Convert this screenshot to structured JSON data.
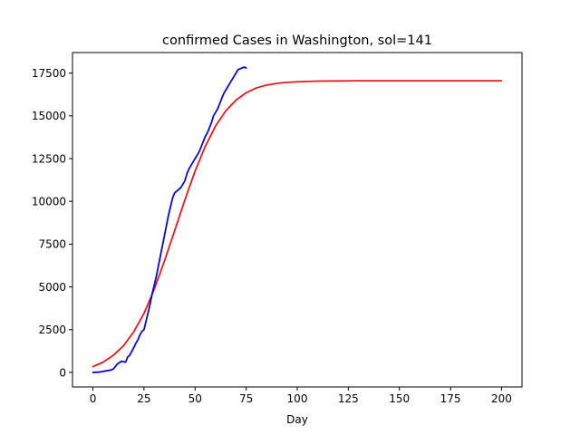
{
  "chart_data": {
    "type": "line",
    "title": "confirmed Cases in Washington, sol=141",
    "xlabel": "Day",
    "ylabel": "",
    "xlim": [
      -10,
      210
    ],
    "ylim": [
      -850,
      18700
    ],
    "xticks": [
      0,
      25,
      50,
      75,
      100,
      125,
      150,
      175,
      200
    ],
    "yticks": [
      0,
      2500,
      5000,
      7500,
      10000,
      12500,
      15000,
      17500
    ],
    "grid": false,
    "colors": {
      "fitted": "#e31a1c",
      "observed": "#0a0ac4"
    },
    "series": [
      {
        "key": "fitted",
        "x": [
          0,
          5,
          10,
          15,
          20,
          25,
          30,
          35,
          40,
          45,
          50,
          55,
          60,
          65,
          70,
          75,
          80,
          85,
          90,
          95,
          100,
          110,
          120,
          130,
          140,
          150,
          160,
          170,
          180,
          190,
          200
        ],
        "values": [
          340,
          600,
          1000,
          1560,
          2380,
          3450,
          4860,
          6510,
          8290,
          10080,
          11770,
          13220,
          14400,
          15290,
          15920,
          16350,
          16630,
          16800,
          16900,
          16960,
          16990,
          17030,
          17040,
          17050,
          17050,
          17050,
          17050,
          17050,
          17050,
          17050,
          17050
        ]
      },
      {
        "key": "observed",
        "x": [
          0,
          3,
          5,
          7,
          9,
          10,
          12,
          14,
          16,
          17,
          18,
          20,
          21,
          22,
          23,
          24,
          25,
          26,
          27,
          28,
          29,
          30,
          31,
          32,
          33,
          34,
          35,
          36,
          37,
          38,
          39,
          40,
          41,
          42,
          43,
          44,
          45,
          46,
          47,
          48,
          49,
          50,
          51,
          52,
          53,
          54,
          55,
          56,
          57,
          58,
          59,
          60,
          61,
          62,
          63,
          64,
          65,
          66,
          67,
          68,
          69,
          70,
          71,
          72,
          73,
          74,
          75
        ],
        "values": [
          0,
          20,
          60,
          100,
          150,
          200,
          500,
          650,
          600,
          900,
          1000,
          1450,
          1700,
          1900,
          2200,
          2400,
          2500,
          3000,
          3500,
          4000,
          4600,
          5100,
          5600,
          6200,
          6800,
          7400,
          8000,
          8600,
          9200,
          9700,
          10200,
          10500,
          10600,
          10700,
          10800,
          11000,
          11200,
          11600,
          11900,
          12100,
          12300,
          12500,
          12700,
          12900,
          13200,
          13500,
          13800,
          14000,
          14300,
          14600,
          15000,
          15200,
          15400,
          15700,
          16000,
          16300,
          16500,
          16700,
          16900,
          17100,
          17300,
          17500,
          17700,
          17750,
          17800,
          17850,
          17800
        ]
      }
    ]
  }
}
